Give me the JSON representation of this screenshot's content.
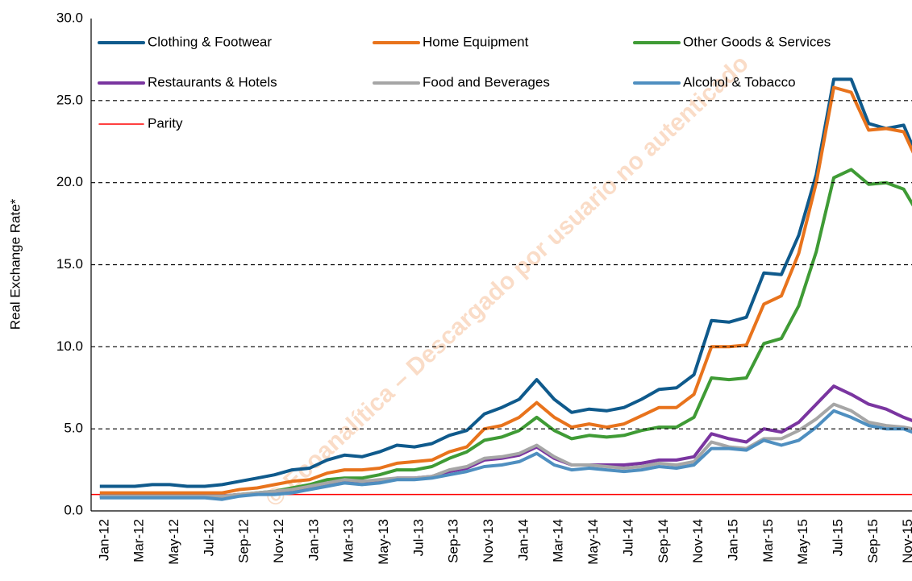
{
  "chart_data": {
    "type": "line",
    "y_label": "Real Exchange Rate*",
    "watermark": "© Ecoanalítica – Descargado por usuario no autenticado",
    "categories": [
      "Jan-12",
      null,
      "Mar-12",
      null,
      "May-12",
      null,
      "Jul-12",
      null,
      "Sep-12",
      null,
      "Nov-12",
      null,
      "Jan-13",
      null,
      "Mar-13",
      null,
      "May-13",
      null,
      "Jul-13",
      null,
      "Sep-13",
      null,
      "Nov-13",
      null,
      "Jan-14",
      null,
      "Mar-14",
      null,
      "May-14",
      null,
      "Jul-14",
      null,
      "Sep-14",
      null,
      "Nov-14",
      null,
      "Jan-15",
      null,
      "Mar-15",
      null,
      "May-15",
      null,
      "Jul-15",
      null,
      "Sep-15",
      null,
      "Nov-15",
      null
    ],
    "series": [
      {
        "name": "Clothing & Footwear",
        "color": "#0f5a8c",
        "values": [
          1.5,
          1.5,
          1.5,
          1.6,
          1.6,
          1.5,
          1.5,
          1.6,
          1.8,
          2.0,
          2.2,
          2.5,
          2.6,
          3.1,
          3.4,
          3.3,
          3.6,
          4.0,
          3.9,
          4.1,
          4.6,
          4.9,
          5.9,
          6.3,
          6.8,
          8.0,
          6.8,
          6.0,
          6.2,
          6.1,
          6.3,
          6.8,
          7.4,
          7.5,
          8.3,
          11.6,
          11.5,
          11.8,
          14.5,
          14.4,
          16.8,
          20.5,
          26.3,
          26.3,
          23.6,
          23.3,
          23.5,
          21.0
        ]
      },
      {
        "name": "Home Equipment",
        "color": "#e8731c",
        "values": [
          1.1,
          1.1,
          1.1,
          1.1,
          1.1,
          1.1,
          1.1,
          1.1,
          1.3,
          1.4,
          1.6,
          1.8,
          1.9,
          2.3,
          2.5,
          2.5,
          2.6,
          2.9,
          3.0,
          3.1,
          3.6,
          3.9,
          5.0,
          5.2,
          5.7,
          6.6,
          5.7,
          5.1,
          5.3,
          5.1,
          5.3,
          5.8,
          6.3,
          6.3,
          7.1,
          10.0,
          10.0,
          10.1,
          12.6,
          13.1,
          15.7,
          20.0,
          25.8,
          25.5,
          23.2,
          23.3,
          23.1,
          20.8
        ]
      },
      {
        "name": "Other Goods & Services",
        "color": "#3f9b35",
        "values": [
          0.9,
          0.9,
          0.9,
          0.9,
          0.9,
          0.9,
          0.9,
          0.9,
          1.0,
          1.1,
          1.2,
          1.4,
          1.6,
          1.9,
          2.0,
          2.0,
          2.2,
          2.5,
          2.5,
          2.7,
          3.2,
          3.6,
          4.3,
          4.5,
          4.9,
          5.7,
          4.9,
          4.4,
          4.6,
          4.5,
          4.6,
          4.9,
          5.1,
          5.1,
          5.7,
          8.1,
          8.0,
          8.1,
          10.2,
          10.5,
          12.5,
          15.8,
          20.3,
          20.8,
          19.9,
          20.0,
          19.6,
          17.8
        ]
      },
      {
        "name": "Restaurants & Hotels",
        "color": "#7a35a0",
        "values": [
          0.9,
          0.9,
          0.9,
          0.9,
          0.9,
          0.9,
          0.9,
          0.9,
          1.0,
          1.0,
          1.1,
          1.2,
          1.4,
          1.6,
          1.8,
          1.8,
          1.8,
          2.0,
          2.0,
          2.1,
          2.4,
          2.6,
          3.1,
          3.2,
          3.4,
          3.9,
          3.2,
          2.8,
          2.8,
          2.8,
          2.8,
          2.9,
          3.1,
          3.1,
          3.3,
          4.7,
          4.4,
          4.2,
          5.0,
          4.8,
          5.4,
          6.5,
          7.6,
          7.1,
          6.5,
          6.2,
          5.7,
          5.3
        ]
      },
      {
        "name": "Food and Beverages",
        "color": "#a6a6a6",
        "values": [
          0.9,
          0.9,
          0.9,
          0.9,
          0.9,
          0.9,
          0.9,
          0.9,
          1.0,
          1.1,
          1.2,
          1.3,
          1.5,
          1.7,
          1.9,
          1.8,
          1.9,
          2.0,
          2.0,
          2.1,
          2.5,
          2.7,
          3.2,
          3.3,
          3.5,
          4.0,
          3.3,
          2.8,
          2.8,
          2.7,
          2.6,
          2.7,
          2.9,
          2.8,
          3.0,
          4.2,
          3.9,
          3.8,
          4.4,
          4.4,
          4.9,
          5.6,
          6.5,
          6.1,
          5.4,
          5.2,
          5.1,
          4.9
        ]
      },
      {
        "name": "Alcohol & Tobacco",
        "color": "#4f8fc0",
        "values": [
          0.8,
          0.8,
          0.8,
          0.8,
          0.8,
          0.8,
          0.8,
          0.7,
          0.9,
          1.0,
          1.0,
          1.1,
          1.3,
          1.5,
          1.7,
          1.6,
          1.7,
          1.9,
          1.9,
          2.0,
          2.2,
          2.4,
          2.7,
          2.8,
          3.0,
          3.5,
          2.8,
          2.5,
          2.6,
          2.5,
          2.4,
          2.5,
          2.7,
          2.6,
          2.8,
          3.8,
          3.8,
          3.7,
          4.3,
          4.0,
          4.3,
          5.1,
          6.1,
          5.7,
          5.2,
          5.0,
          5.0,
          4.6
        ]
      }
    ],
    "reference_line": {
      "name": "Parity",
      "color": "#ff0000",
      "value": 1
    },
    "ylim": [
      0,
      30
    ],
    "yticks": [
      {
        "value": 0,
        "label": "0.0"
      },
      {
        "value": 5,
        "label": "5.0"
      },
      {
        "value": 10,
        "label": "10.0"
      },
      {
        "value": 15,
        "label": "15.0"
      },
      {
        "value": 20,
        "label": "20.0"
      },
      {
        "value": 25,
        "label": "25.0"
      },
      {
        "value": 30,
        "label": "30.0"
      }
    ],
    "grid": true,
    "legend": "top-left"
  }
}
